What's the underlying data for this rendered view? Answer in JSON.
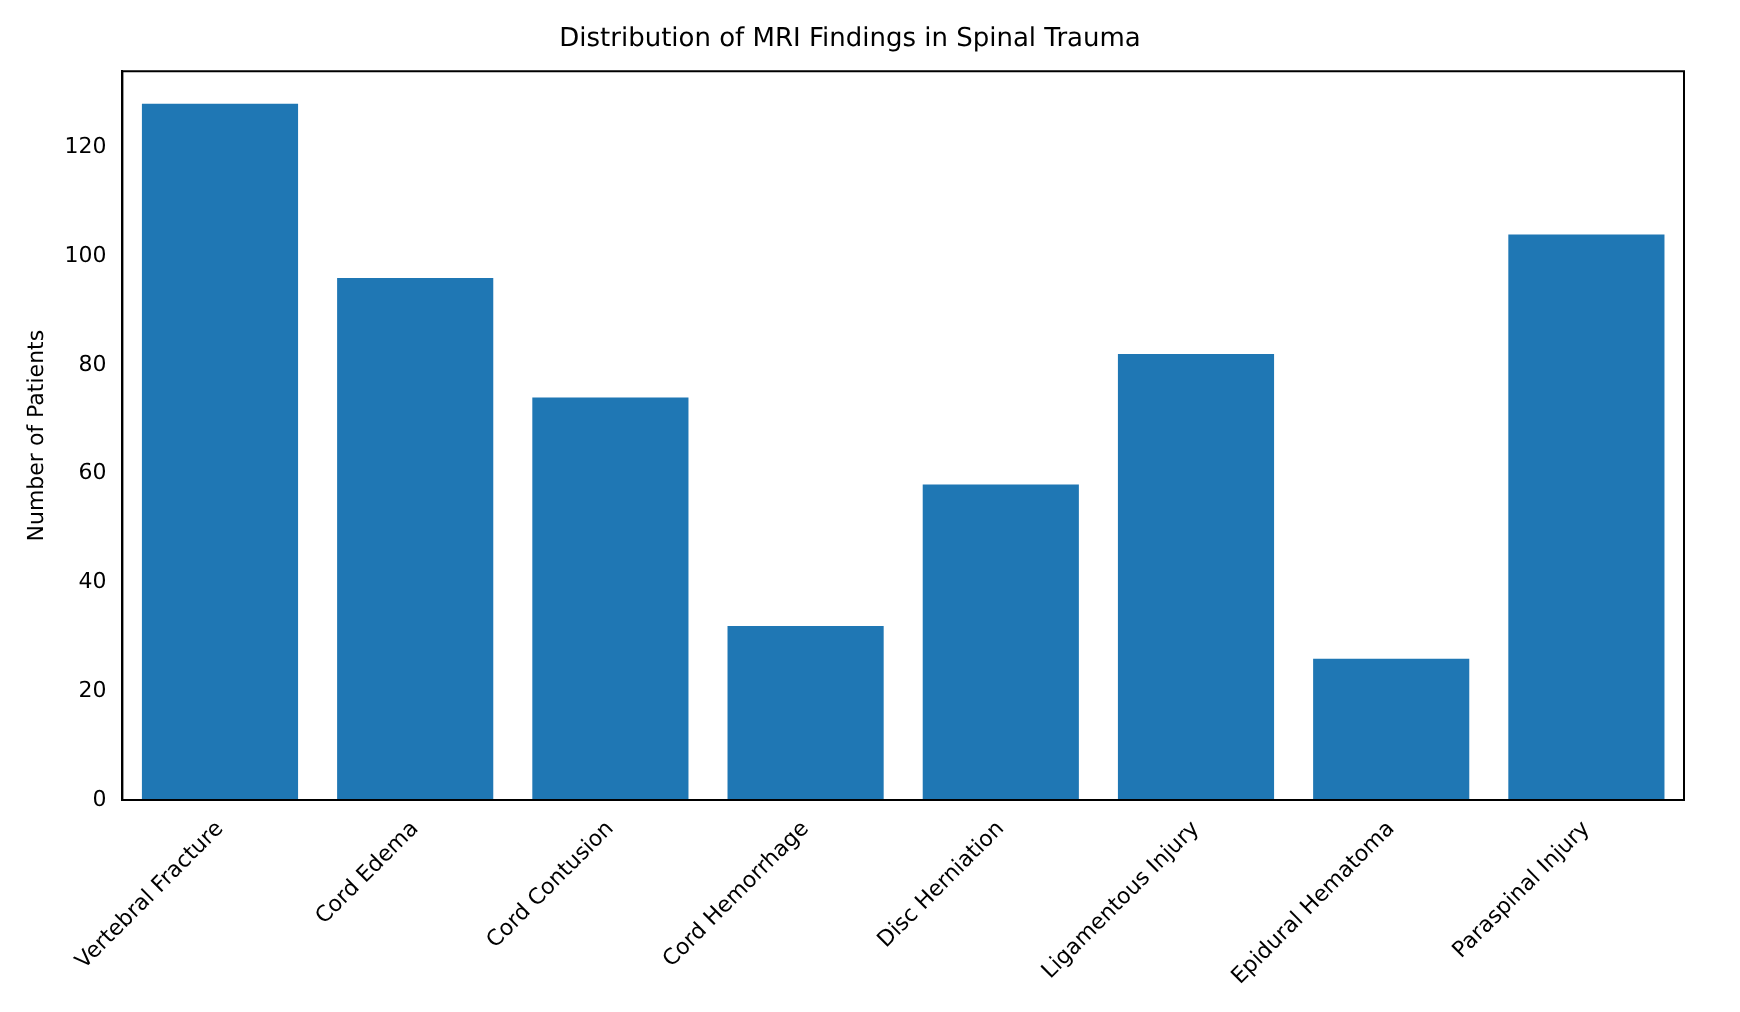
{
  "chart_data": {
    "type": "bar",
    "title": "Distribution of MRI Findings in Spinal Trauma",
    "ylabel": "Number of Patients",
    "categories": [
      "Vertebral Fracture",
      "Cord Edema",
      "Cord Contusion",
      "Cord Hemorrhage",
      "Disc Herniation",
      "Ligamentous Injury",
      "Epidural Hematoma",
      "Paraspinal Injury"
    ],
    "values": [
      128,
      96,
      74,
      32,
      58,
      82,
      26,
      104
    ],
    "color": "#1f77b4",
    "ylim": [
      0,
      134
    ],
    "yticks": [
      0,
      20,
      40,
      60,
      80,
      100,
      120
    ],
    "grid": false,
    "legend": false
  }
}
